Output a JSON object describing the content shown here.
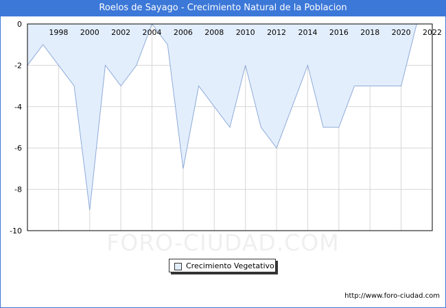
{
  "title": "Roelos de Sayago - Crecimiento Natural de la Poblacion",
  "watermark": "FORO-CIUDAD.COM",
  "source": "http://www.foro-ciudad.com",
  "legend_label": "Crecimiento Vegetativo",
  "colors": {
    "title_bg": "#3c78d8",
    "fill": "#e3eefd",
    "line": "#8eaad8",
    "grid": "#d6d6d6"
  },
  "chart_data": {
    "type": "area",
    "title": "Roelos de Sayago - Crecimiento Natural de la Poblacion",
    "xlabel": "",
    "ylabel": "",
    "xlim": [
      1996,
      2022
    ],
    "ylim": [
      -10,
      0
    ],
    "grid": true,
    "legend_position": "bottom-center",
    "x_ticks": [
      1998,
      2000,
      2002,
      2004,
      2006,
      2008,
      2010,
      2012,
      2014,
      2016,
      2018,
      2020,
      2022
    ],
    "y_ticks": [
      0,
      -2,
      -4,
      -6,
      -8,
      -10
    ],
    "series": [
      {
        "name": "Crecimiento Vegetativo",
        "x": [
          1996,
          1997,
          1998,
          1999,
          2000,
          2001,
          2002,
          2003,
          2004,
          2005,
          2006,
          2007,
          2008,
          2009,
          2010,
          2011,
          2012,
          2013,
          2014,
          2015,
          2016,
          2017,
          2018,
          2019,
          2020,
          2021
        ],
        "values": [
          -2,
          -1,
          -2,
          -3,
          -9,
          -2,
          -3,
          -2,
          0,
          -1,
          -7,
          -3,
          -4,
          -5,
          -2,
          -5,
          -6,
          -4,
          -2,
          -5,
          -5,
          -3,
          -3,
          -3,
          -3,
          0
        ]
      }
    ]
  }
}
